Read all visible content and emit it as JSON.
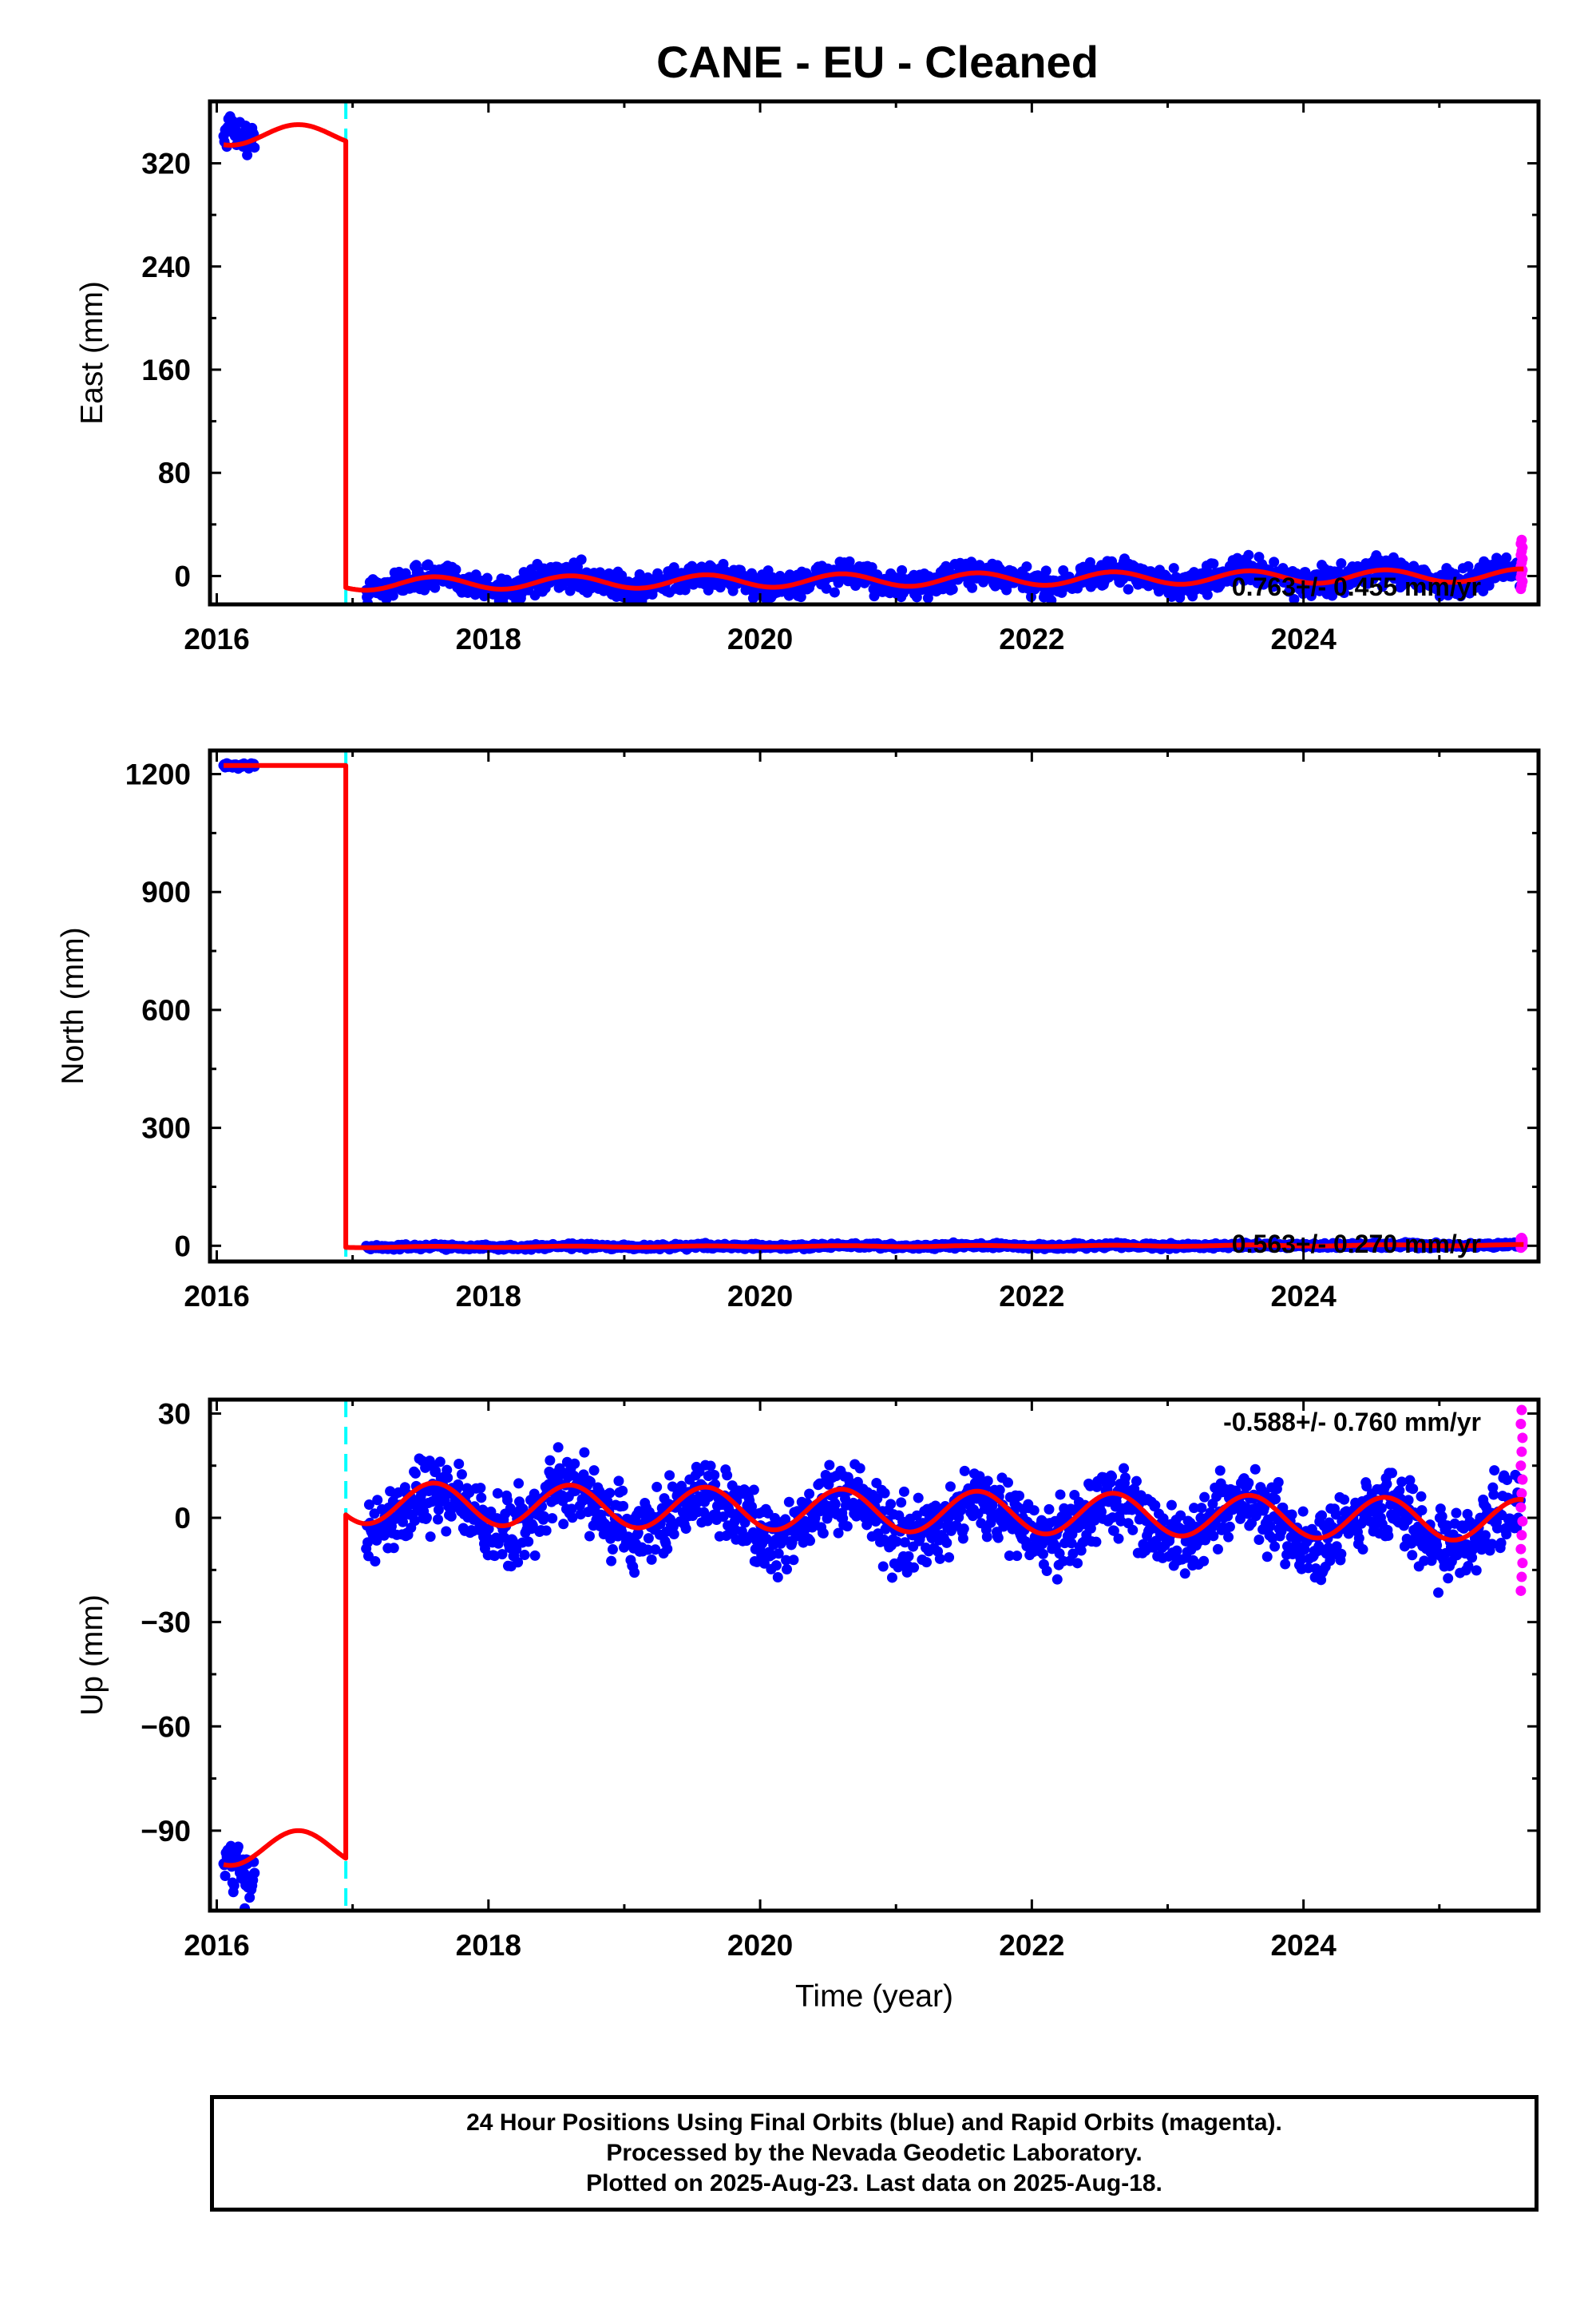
{
  "title": "CANE  - EU - Cleaned",
  "colors": {
    "final_orbits": "#0000ff",
    "rapid_orbits": "#ff00ff",
    "model": "#ff0000",
    "offset_marker": "#00ffff",
    "frame": "#000000"
  },
  "chart_data": [
    {
      "type": "scatter",
      "panel": "east",
      "ylabel": "East (mm)",
      "xlabel": "",
      "xlim": [
        2015.95,
        2025.73
      ],
      "ylim": [
        -22,
        368
      ],
      "xticks": [
        2016,
        2018,
        2020,
        2022,
        2024
      ],
      "yticks": [
        0,
        80,
        160,
        240,
        320
      ],
      "rate_label": "0.763+/- 0.455 mm/yr",
      "offset_epochs": [
        2016.95
      ],
      "early_segment": {
        "x_range": [
          2016.05,
          2016.28
        ],
        "level": 342,
        "amplitude": 9
      },
      "main_segment": {
        "x_range": [
          2017.1,
          2025.6
        ],
        "level": -3,
        "trend_mm_per_yr": 0.763,
        "annual_amplitude": 5,
        "scatter": 5
      },
      "rapid_points": {
        "x": 2025.6,
        "y_min": -10,
        "y_max": 28
      },
      "model": {
        "early_level": 342,
        "early_amplitude": 8,
        "main_level": -3,
        "main_amplitude": 5,
        "trend_mm_per_yr": 0.763
      }
    },
    {
      "type": "scatter",
      "panel": "north",
      "ylabel": "North (mm)",
      "xlabel": "",
      "xlim": [
        2015.95,
        2025.73
      ],
      "ylim": [
        -40,
        1260
      ],
      "xticks": [
        2016,
        2018,
        2020,
        2022,
        2024
      ],
      "yticks": [
        0,
        300,
        600,
        900,
        1200
      ],
      "rate_label": "0.563+/- 0.270 mm/yr",
      "offset_epochs": [
        2016.95
      ],
      "early_segment": {
        "x_range": [
          2016.05,
          2016.28
        ],
        "level": 1222,
        "amplitude": 0
      },
      "main_segment": {
        "x_range": [
          2017.1,
          2025.6
        ],
        "level": -1,
        "trend_mm_per_yr": 0.563,
        "annual_amplitude": 1.5,
        "scatter": 3
      },
      "rapid_points": {
        "x": 2025.6,
        "y_min": -5,
        "y_max": 20
      },
      "model": {
        "early_level": 1222,
        "early_amplitude": 0,
        "main_level": -1,
        "main_amplitude": 1.5,
        "trend_mm_per_yr": 0.563
      }
    },
    {
      "type": "scatter",
      "panel": "up",
      "ylabel": "Up (mm)",
      "xlabel": "Time (year)",
      "xlim": [
        2015.95,
        2025.73
      ],
      "ylim": [
        -113,
        34
      ],
      "xticks": [
        2016,
        2018,
        2020,
        2022,
        2024
      ],
      "yticks": [
        -90,
        -60,
        -30,
        0,
        30
      ],
      "rate_label": "-0.588+/- 0.760 mm/yr",
      "offset_epochs": [
        2016.95
      ],
      "early_segment": {
        "x_range": [
          2016.05,
          2016.28
        ],
        "level": -101,
        "amplitude": 5
      },
      "main_segment": {
        "x_range": [
          2017.1,
          2025.6
        ],
        "level": 0,
        "trend_mm_per_yr": -0.588,
        "annual_amplitude": 6,
        "scatter": 5
      },
      "rapid_points": {
        "x": 2025.6,
        "y_min": -21,
        "y_max": 31
      },
      "model": {
        "early_level": -95,
        "early_amplitude": 5,
        "main_level": 2,
        "main_amplitude": 6,
        "trend_mm_per_yr": -0.588
      }
    }
  ],
  "footer": {
    "line1": "24 Hour Positions Using Final Orbits (blue) and Rapid Orbits (magenta).",
    "line2": "Processed by the Nevada Geodetic Laboratory.",
    "line3": "Plotted on 2025-Aug-23. Last data on 2025-Aug-18."
  }
}
